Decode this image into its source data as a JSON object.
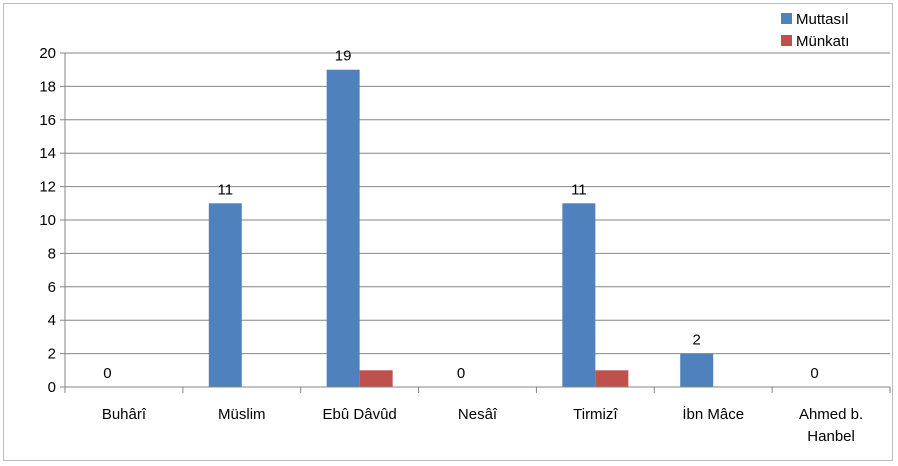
{
  "chart_data": {
    "type": "bar",
    "title": "",
    "xlabel": "",
    "ylabel": "",
    "categories": [
      "Buhârî",
      "Müslim",
      "Ebû Dâvûd",
      "Nesâî",
      "Tirmizî",
      "İbn Mâce",
      "Ahmed b. Hanbel"
    ],
    "category_label_lines": [
      [
        "Buhârî"
      ],
      [
        "Müslim"
      ],
      [
        "Ebû Dâvûd"
      ],
      [
        "Nesâî"
      ],
      [
        "Tirmizî"
      ],
      [
        "İbn Mâce"
      ],
      [
        "Ahmed b.",
        "Hanbel"
      ]
    ],
    "series": [
      {
        "name": "Muttasıl",
        "color": "#4f81bd",
        "values": [
          0,
          11,
          19,
          0,
          11,
          2,
          0
        ]
      },
      {
        "name": "Münkatı",
        "color": "#c0504d",
        "values": [
          0,
          0,
          1,
          0,
          1,
          0,
          0
        ]
      }
    ],
    "data_labels": [
      {
        "category_index": 0,
        "series_index": 0,
        "text": "0"
      },
      {
        "category_index": 1,
        "series_index": 0,
        "text": "11"
      },
      {
        "category_index": 2,
        "series_index": 0,
        "text": "19"
      },
      {
        "category_index": 3,
        "series_index": 0,
        "text": "0"
      },
      {
        "category_index": 4,
        "series_index": 0,
        "text": "11"
      },
      {
        "category_index": 5,
        "series_index": 0,
        "text": "2"
      },
      {
        "category_index": 6,
        "series_index": 0,
        "text": "0"
      }
    ],
    "ylim": [
      0,
      20
    ],
    "yticks": [
      0,
      2,
      4,
      6,
      8,
      10,
      12,
      14,
      16,
      18,
      20
    ],
    "grid": true,
    "legend_position": "top-right"
  }
}
